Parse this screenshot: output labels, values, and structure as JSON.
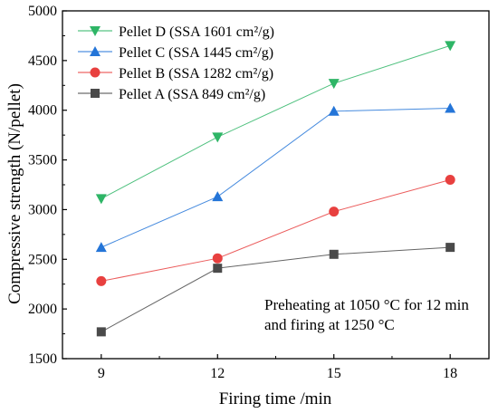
{
  "chart_data": {
    "type": "line",
    "title": "",
    "xlabel": "Firing time /min",
    "ylabel": "Compressive strength (N/pellet)",
    "x": [
      9,
      12,
      15,
      18
    ],
    "xlim": [
      8,
      19
    ],
    "ylim": [
      1500,
      5000
    ],
    "xticks": [
      "9",
      "12",
      "15",
      "18"
    ],
    "yticks": [
      "1500",
      "2000",
      "2500",
      "3000",
      "3500",
      "4000",
      "4500",
      "5000"
    ],
    "grid": false,
    "legend_position": "top-left",
    "annotation": [
      "Preheating at 1050 °C for 12 min",
      "and firing at 1250 °C"
    ],
    "series": [
      {
        "name": "Pellet D (SSA 1601 cm²/g)",
        "values": [
          3110,
          3730,
          4270,
          4650
        ],
        "color": "#2eb566",
        "marker": "triangle-down"
      },
      {
        "name": "Pellet C (SSA 1445 cm²/g)",
        "values": [
          2620,
          3130,
          3990,
          4020
        ],
        "color": "#2475d8",
        "marker": "triangle-up"
      },
      {
        "name": "Pellet B (SSA 1282 cm²/g)",
        "values": [
          2280,
          2510,
          2980,
          3300
        ],
        "color": "#e8403f",
        "marker": "circle"
      },
      {
        "name": "Pellet A (SSA 849 cm²/g)",
        "values": [
          1770,
          2410,
          2550,
          2620
        ],
        "color": "#4a4a4a",
        "marker": "square"
      }
    ]
  }
}
